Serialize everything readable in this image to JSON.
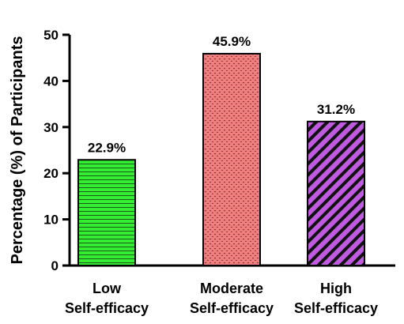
{
  "chart_data": {
    "type": "bar",
    "categories": [
      [
        "Low",
        "Self-efficacy"
      ],
      [
        "Moderate",
        "Self-efficacy"
      ],
      [
        "High",
        "Self-efficacy"
      ]
    ],
    "values": [
      22.9,
      45.9,
      31.2
    ],
    "value_labels": [
      "22.9%",
      "45.9%",
      "31.2%"
    ],
    "ylabel": "Percentage (%) of Participants",
    "xlabel": "",
    "ylim": [
      0,
      50
    ],
    "yticks": [
      0,
      10,
      20,
      30,
      40,
      50
    ],
    "grid": false,
    "legend": "none",
    "bar_styles": [
      {
        "fill": "#33ee33",
        "pattern": "horizontal-lines"
      },
      {
        "fill": "#f07f7f",
        "pattern": "dots"
      },
      {
        "fill": "#c05ae0",
        "pattern": "diagonal-lines"
      }
    ]
  }
}
